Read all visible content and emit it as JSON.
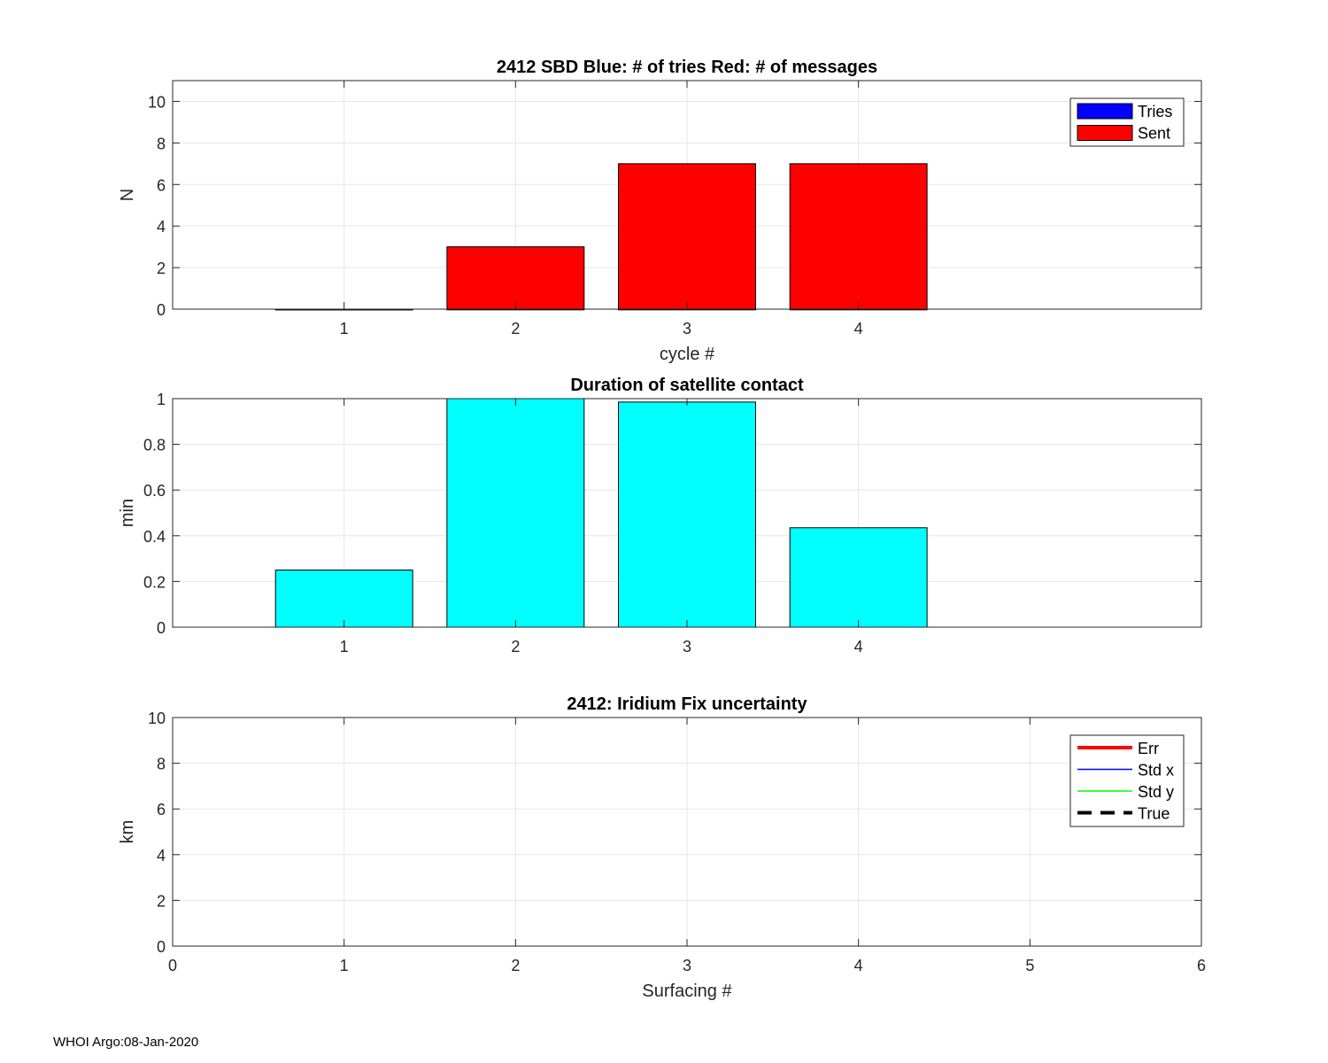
{
  "footer": "WHOI Argo:08-Jan-2020",
  "chart_data": [
    {
      "type": "bar",
      "title": "2412 SBD  Blue: # of tries   Red: # of messages",
      "xlabel": "cycle #",
      "ylabel": "N",
      "categories": [
        1,
        2,
        3,
        4
      ],
      "xlim": [
        0.0,
        6.0
      ],
      "ylim": [
        0,
        11
      ],
      "yticks": [
        0,
        2,
        4,
        6,
        8,
        10
      ],
      "grid": true,
      "legend_position": "top-right",
      "series": [
        {
          "name": "Tries",
          "color": "#0000ff",
          "values": [
            0,
            0,
            0,
            0
          ]
        },
        {
          "name": "Sent",
          "color": "#ff0000",
          "values": [
            0,
            3,
            7,
            7
          ]
        }
      ]
    },
    {
      "type": "bar",
      "title": "Duration of satellite contact",
      "xlabel": "",
      "ylabel": "min",
      "categories": [
        1,
        2,
        3,
        4
      ],
      "xlim": [
        0.0,
        6.0
      ],
      "ylim": [
        0,
        1
      ],
      "yticks": [
        0,
        0.2,
        0.4,
        0.6,
        0.8,
        1
      ],
      "grid": true,
      "series": [
        {
          "color": "#00ffff",
          "values": [
            0.25,
            1.0,
            0.985,
            0.435
          ]
        }
      ]
    },
    {
      "type": "line",
      "title": "2412: Iridium Fix uncertainty",
      "xlabel": "Surfacing #",
      "ylabel": "km",
      "xlim": [
        0,
        6
      ],
      "ylim": [
        0,
        10
      ],
      "xticks": [
        0,
        1,
        2,
        3,
        4,
        5,
        6
      ],
      "yticks": [
        0,
        2,
        4,
        6,
        8,
        10
      ],
      "grid": true,
      "legend_position": "top-right",
      "series": [
        {
          "name": "Err",
          "color": "#ff0000",
          "style": "solid-thick",
          "x": [],
          "y": []
        },
        {
          "name": "Std x",
          "color": "#0000ff",
          "style": "solid",
          "x": [],
          "y": []
        },
        {
          "name": "Std y",
          "color": "#00ff00",
          "style": "solid",
          "x": [],
          "y": []
        },
        {
          "name": "True",
          "color": "#000000",
          "style": "dashed",
          "x": [],
          "y": []
        }
      ]
    }
  ]
}
